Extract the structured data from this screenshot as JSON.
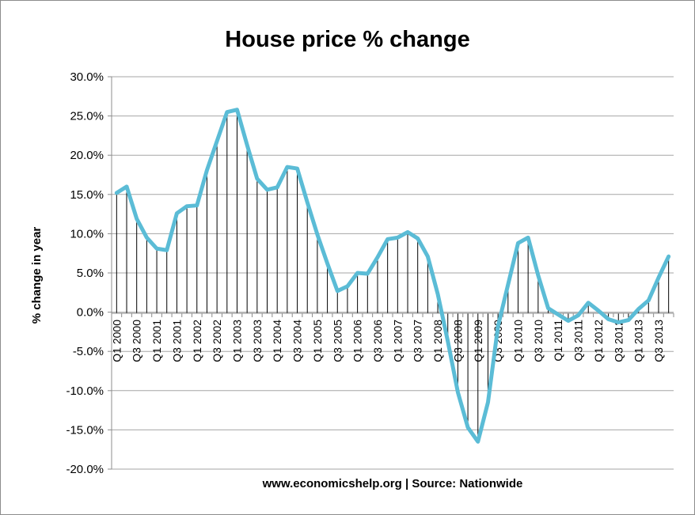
{
  "chart_data": {
    "type": "line",
    "title": "House price % change",
    "ylabel": "% change in year",
    "xlabel": "",
    "source_note": "www.economicshelp.org | Source: Nationwide",
    "ylim": [
      -20,
      30
    ],
    "yticks": [
      30,
      25,
      20,
      15,
      10,
      5,
      0,
      -5,
      -10,
      -15,
      -20
    ],
    "ytick_labels": [
      "30.0%",
      "25.0%",
      "20.0%",
      "15.0%",
      "10.0%",
      "5.0%",
      "0.0%",
      "-5.0%",
      "-10.0%",
      "-15.0%",
      "-20.0%"
    ],
    "x_tick_labels": [
      "Q1 2000",
      "Q3 2000",
      "Q1 2001",
      "Q3 2001",
      "Q1 2002",
      "Q3 2002",
      "Q1 2003",
      "Q3 2003",
      "Q1 2004",
      "Q3 2004",
      "Q1 2005",
      "Q3 2005",
      "Q1 2006",
      "Q3 2006",
      "Q1 2007",
      "Q3 2007",
      "Q1 2008",
      "Q3 2008",
      "Q1 2009",
      "Q3 2009",
      "Q1 2010",
      "Q3 2010",
      "Q1 2011",
      "Q3 2011",
      "Q1 2012",
      "Q3 2012",
      "Q1 2013",
      "Q3 2013"
    ],
    "grid": "horizontal",
    "series_color": "#5bbcd6",
    "drop_line_color": "#000000",
    "categories": [
      "Q1 2000",
      "Q2 2000",
      "Q3 2000",
      "Q4 2000",
      "Q1 2001",
      "Q2 2001",
      "Q3 2001",
      "Q4 2001",
      "Q1 2002",
      "Q2 2002",
      "Q3 2002",
      "Q4 2002",
      "Q1 2003",
      "Q2 2003",
      "Q3 2003",
      "Q4 2003",
      "Q1 2004",
      "Q2 2004",
      "Q3 2004",
      "Q4 2004",
      "Q1 2005",
      "Q2 2005",
      "Q3 2005",
      "Q4 2005",
      "Q1 2006",
      "Q2 2006",
      "Q3 2006",
      "Q4 2006",
      "Q1 2007",
      "Q2 2007",
      "Q3 2007",
      "Q4 2007",
      "Q1 2008",
      "Q2 2008",
      "Q3 2008",
      "Q4 2008",
      "Q1 2009",
      "Q2 2009",
      "Q3 2009",
      "Q4 2009",
      "Q1 2010",
      "Q2 2010",
      "Q3 2010",
      "Q4 2010",
      "Q1 2011",
      "Q2 2011",
      "Q3 2011",
      "Q4 2011",
      "Q1 2012",
      "Q2 2012",
      "Q3 2012",
      "Q4 2012",
      "Q1 2013",
      "Q2 2013",
      "Q3 2013",
      "Q4 2013"
    ],
    "values": [
      15.2,
      16.0,
      11.9,
      9.5,
      8.1,
      7.9,
      12.6,
      13.5,
      13.6,
      18.1,
      21.8,
      25.5,
      25.8,
      21.3,
      17.0,
      15.6,
      15.9,
      18.5,
      18.3,
      14.0,
      9.9,
      6.2,
      2.7,
      3.3,
      5.0,
      4.9,
      7.0,
      9.3,
      9.5,
      10.2,
      9.4,
      7.1,
      2.3,
      -3.7,
      -10.2,
      -14.7,
      -16.5,
      -11.5,
      -1.8,
      3.5,
      8.8,
      9.5,
      4.7,
      0.5,
      -0.3,
      -1.1,
      -0.4,
      1.2,
      0.2,
      -0.9,
      -1.3,
      -1.0,
      0.4,
      1.5,
      4.4,
      7.1
    ]
  }
}
